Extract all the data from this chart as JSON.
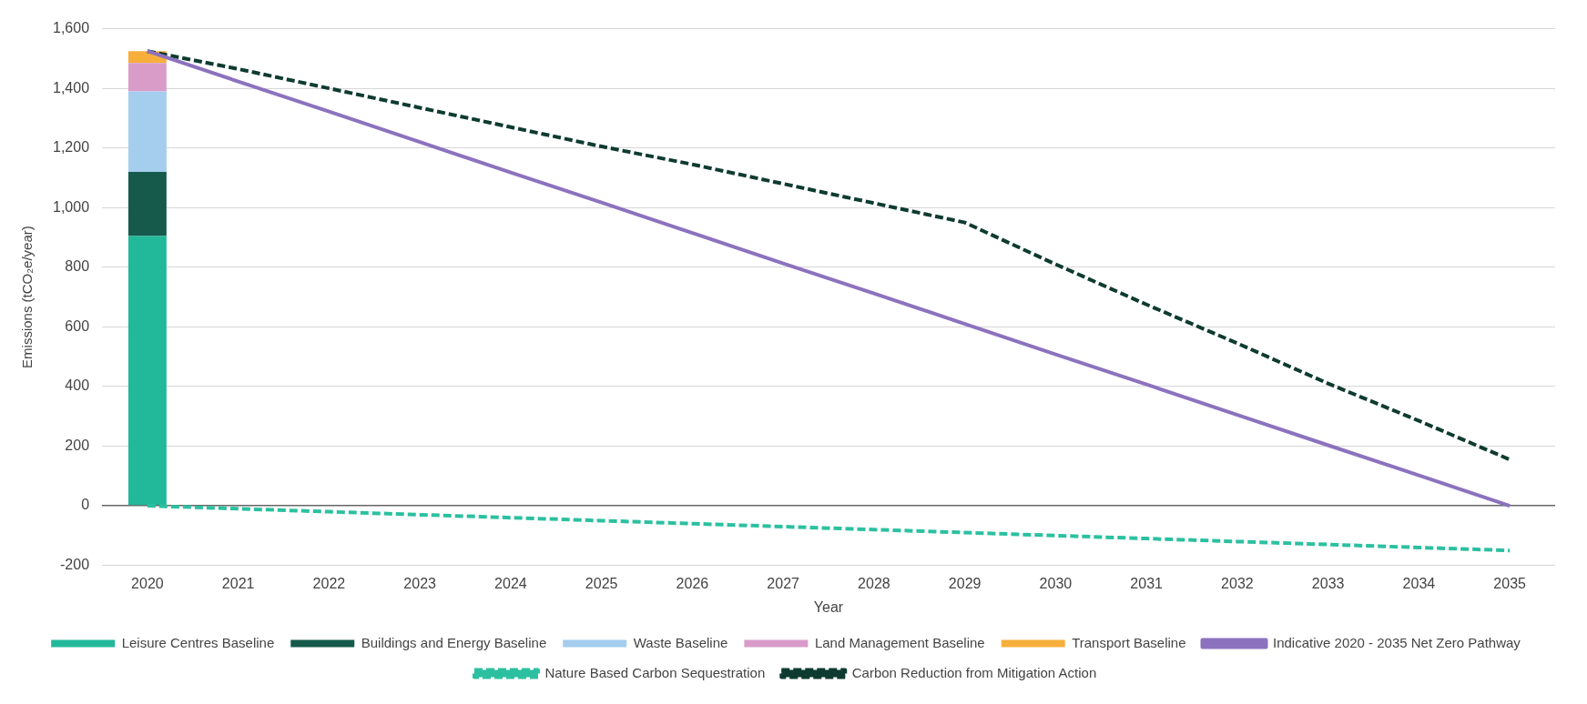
{
  "chart_data": {
    "type": "bar",
    "stacked": true,
    "xlabel": "Year",
    "ylabel": "Emissions (tCO₂e/year)",
    "categories": [
      "2020",
      "2021",
      "2022",
      "2023",
      "2024",
      "2025",
      "2026",
      "2027",
      "2028",
      "2029",
      "2030",
      "2031",
      "2032",
      "2033",
      "2034",
      "2035"
    ],
    "ylim": [
      -200,
      1600
    ],
    "yticks": [
      {
        "value": -200,
        "label": "-200"
      },
      {
        "value": 0,
        "label": "0"
      },
      {
        "value": 200,
        "label": "200"
      },
      {
        "value": 400,
        "label": "400"
      },
      {
        "value": 600,
        "label": "600"
      },
      {
        "value": 800,
        "label": "800"
      },
      {
        "value": 1000,
        "label": "1,000"
      },
      {
        "value": 1200,
        "label": "1,200"
      },
      {
        "value": 1400,
        "label": "1,400"
      },
      {
        "value": 1600,
        "label": "1,600"
      }
    ],
    "grid": "y",
    "legend": "bottom",
    "series": [
      {
        "name": "Leisure Centres Baseline",
        "color": "#22b89a",
        "values": [
          905,
          null,
          null,
          null,
          null,
          null,
          null,
          null,
          null,
          null,
          null,
          null,
          null,
          null,
          null,
          null
        ]
      },
      {
        "name": "Buildings and Energy Baseline",
        "color": "#165a4c",
        "values": [
          215,
          null,
          null,
          null,
          null,
          null,
          null,
          null,
          null,
          null,
          null,
          null,
          null,
          null,
          null,
          null
        ]
      },
      {
        "name": "Waste Baseline",
        "color": "#a4cdee",
        "values": [
          270,
          null,
          null,
          null,
          null,
          null,
          null,
          null,
          null,
          null,
          null,
          null,
          null,
          null,
          null,
          null
        ]
      },
      {
        "name": "Land Management Baseline",
        "color": "#d99cc9",
        "values": [
          95,
          null,
          null,
          null,
          null,
          null,
          null,
          null,
          null,
          null,
          null,
          null,
          null,
          null,
          null,
          null
        ]
      },
      {
        "name": "Transport Baseline",
        "color": "#f7ae3b",
        "values": [
          40,
          null,
          null,
          null,
          null,
          null,
          null,
          null,
          null,
          null,
          null,
          null,
          null,
          null,
          null,
          null
        ]
      },
      {
        "name": "Indicative 2020 - 2035 Net Zero Pathway",
        "type": "line",
        "line_style": "solid",
        "color": "#8c72be",
        "values": [
          1525,
          1423,
          1322,
          1220,
          1118,
          1017,
          915,
          813,
          712,
          610,
          508,
          407,
          305,
          203,
          102,
          0
        ]
      },
      {
        "name": "Nature Based Carbon Sequestration",
        "type": "line",
        "line_style": "dashed",
        "color": "#2cc0a0",
        "values": [
          0,
          -10,
          -20,
          -30,
          -40,
          -50,
          -60,
          -70,
          -80,
          -90,
          -100,
          -110,
          -120,
          -130,
          -140,
          -150
        ]
      },
      {
        "name": "Carbon Reduction from Mitigation Action",
        "type": "line",
        "line_style": "dashed",
        "color": "#0e3b30",
        "values": [
          1525,
          1465,
          1400,
          1335,
          1270,
          1205,
          1145,
          1080,
          1015,
          950,
          810,
          675,
          545,
          410,
          285,
          155
        ]
      }
    ]
  }
}
